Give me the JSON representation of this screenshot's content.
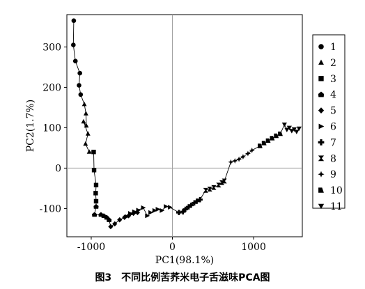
{
  "caption": "图3　不同比例苦荞米电子舌滋味PCA图",
  "chart_data": {
    "type": "scatter",
    "xlabel": "PC1(98.1%)",
    "ylabel": "PC2(1.7%)",
    "xlim": [
      -1300,
      1600
    ],
    "ylim": [
      -170,
      380
    ],
    "xticks": [
      -1000,
      0,
      1000
    ],
    "yticks": [
      -100,
      0,
      100,
      200,
      300
    ],
    "xtick_labels": [
      "-1000",
      "0",
      "1000"
    ],
    "ytick_labels": [
      "-100",
      "0",
      "100",
      "200",
      "300"
    ],
    "zero_lines": true,
    "legend_position": "right",
    "series": [
      {
        "name": "1",
        "marker": "circle",
        "points": [
          [
            -1215,
            365
          ],
          [
            -1220,
            305
          ],
          [
            -1195,
            265
          ],
          [
            -1140,
            235
          ],
          [
            -1150,
            205
          ],
          [
            -1130,
            182
          ]
        ]
      },
      {
        "name": "2",
        "marker": "triangle-up",
        "points": [
          [
            -1085,
            158
          ],
          [
            -1065,
            135
          ],
          [
            -1060,
            105
          ],
          [
            -1095,
            115
          ],
          [
            -1040,
            85
          ],
          [
            -1070,
            60
          ],
          [
            -1025,
            40
          ]
        ]
      },
      {
        "name": "3",
        "marker": "square",
        "points": [
          [
            -970,
            40
          ],
          [
            -965,
            -5
          ],
          [
            -940,
            -42
          ],
          [
            -945,
            -62
          ],
          [
            -940,
            -82
          ]
        ]
      },
      {
        "name": "4",
        "marker": "pentagon",
        "points": [
          [
            -940,
            -95
          ],
          [
            -960,
            -115
          ],
          [
            -880,
            -115
          ],
          [
            -845,
            -118
          ],
          [
            -810,
            -122
          ],
          [
            -780,
            -128
          ]
        ]
      },
      {
        "name": "5",
        "marker": "diamond",
        "points": [
          [
            -760,
            -145
          ],
          [
            -710,
            -138
          ],
          [
            -650,
            -128
          ],
          [
            -590,
            -122
          ],
          [
            -540,
            -118
          ],
          [
            -480,
            -112
          ],
          [
            -430,
            -110
          ]
        ]
      },
      {
        "name": "6",
        "marker": "triangle-right",
        "points": [
          [
            -560,
            -120
          ],
          [
            -520,
            -112
          ],
          [
            -470,
            -108
          ],
          [
            -420,
            -104
          ],
          [
            -360,
            -98
          ],
          [
            -310,
            -118
          ],
          [
            -270,
            -110
          ],
          [
            -220,
            -105
          ],
          [
            -180,
            -102
          ],
          [
            -130,
            -105
          ],
          [
            -80,
            -95
          ],
          [
            -30,
            -97
          ]
        ]
      },
      {
        "name": "7",
        "marker": "cross",
        "points": [
          [
            80,
            -110
          ],
          [
            130,
            -108
          ],
          [
            160,
            -102
          ],
          [
            200,
            -96
          ],
          [
            230,
            -92
          ],
          [
            270,
            -86
          ],
          [
            300,
            -82
          ],
          [
            340,
            -78
          ]
        ]
      },
      {
        "name": "8",
        "marker": "bowtie",
        "points": [
          [
            410,
            -55
          ],
          [
            460,
            -52
          ],
          [
            510,
            -48
          ],
          [
            570,
            -42
          ],
          [
            610,
            -36
          ],
          [
            640,
            -32
          ]
        ]
      },
      {
        "name": "9",
        "marker": "star",
        "points": [
          [
            720,
            15
          ],
          [
            770,
            18
          ],
          [
            820,
            22
          ],
          [
            870,
            28
          ],
          [
            930,
            36
          ],
          [
            980,
            44
          ]
        ]
      },
      {
        "name": "10",
        "marker": "parallelogram",
        "points": [
          [
            1080,
            55
          ],
          [
            1130,
            62
          ],
          [
            1180,
            68
          ],
          [
            1230,
            74
          ],
          [
            1280,
            80
          ],
          [
            1330,
            85
          ]
        ]
      },
      {
        "name": "11",
        "marker": "triangle-down",
        "points": [
          [
            1380,
            108
          ],
          [
            1410,
            95
          ],
          [
            1440,
            100
          ],
          [
            1470,
            92
          ],
          [
            1500,
            96
          ],
          [
            1530,
            90
          ],
          [
            1560,
            98
          ]
        ]
      }
    ]
  }
}
